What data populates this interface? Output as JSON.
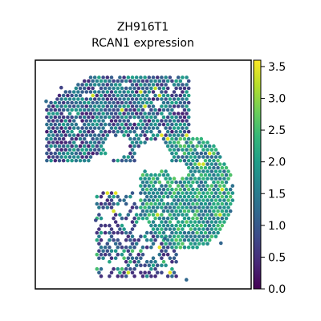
{
  "chart_data": {
    "type": "scatter",
    "title": "ZH916T1",
    "subtitle": "RCAN1 expression",
    "xlabel": "",
    "ylabel": "",
    "colorbar": {
      "colormap": "viridis",
      "range": [
        0.0,
        3.6
      ],
      "ticks": [
        0.0,
        0.5,
        1.0,
        1.5,
        2.0,
        2.5,
        3.0,
        3.5
      ],
      "tick_labels": [
        "0.0",
        "0.5",
        "1.0",
        "1.5",
        "2.0",
        "2.5",
        "3.0",
        "3.5"
      ],
      "colors": [
        "#440154",
        "#482878",
        "#3e4989",
        "#31688e",
        "#26828e",
        "#1f9e89",
        "#35b779",
        "#6ece58",
        "#b5de2b",
        "#fde725"
      ]
    },
    "regions": [
      {
        "name": "upper tissue band",
        "x": [
          0.05,
          0.62
        ],
        "y": [
          0.52,
          0.93
        ],
        "mean": 1.3
      },
      {
        "name": "right tissue lobe",
        "x": [
          0.5,
          0.9
        ],
        "y": [
          0.18,
          0.7
        ],
        "mean": 2.0
      },
      {
        "name": "lower scattered spots",
        "x": [
          0.28,
          0.65
        ],
        "y": [
          0.05,
          0.35
        ],
        "mean": 0.6
      }
    ],
    "grid": false,
    "legend": "colorbar-right"
  }
}
